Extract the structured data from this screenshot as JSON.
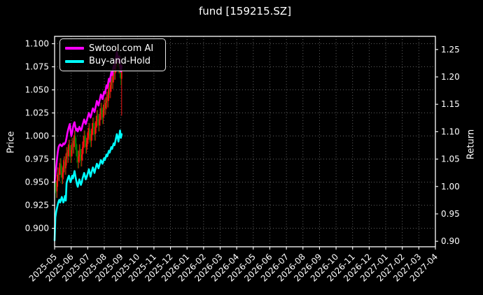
{
  "chart_data": {
    "type": "line+candlestick",
    "title": "fund [159215.SZ]",
    "x_ticks": [
      "2025-05",
      "2025-06",
      "2025-07",
      "2025-08",
      "2025-09",
      "2025-10",
      "2025-11",
      "2025-12",
      "2026-01",
      "2026-02",
      "2026-03",
      "2026-04",
      "2026-05",
      "2026-06",
      "2026-07",
      "2026-08",
      "2026-09",
      "2026-10",
      "2026-11",
      "2026-12",
      "2027-01",
      "2027-02",
      "2027-03",
      "2027-04"
    ],
    "y_left": {
      "label": "Price",
      "ticks": [
        1.1,
        1.075,
        1.05,
        1.025,
        1.0,
        0.975,
        0.95,
        0.925,
        0.9
      ],
      "lim": [
        0.88,
        1.108
      ],
      "decimals": 3
    },
    "y_right": {
      "label": "Return",
      "ticks": [
        1.25,
        1.2,
        1.15,
        1.1,
        1.05,
        1.0,
        0.95,
        0.9
      ],
      "lim": [
        0.89,
        1.274
      ],
      "decimals": 2
    },
    "grid": {
      "on": true,
      "style": "dotted",
      "color": "rgba(255,255,255,0.42)"
    },
    "colors": {
      "background": "#000000",
      "text": "#ffffff",
      "spine": "#ffffff",
      "candle_up": "#ff1111",
      "candle_down": "#008000"
    },
    "legend": {
      "position": "upper-left",
      "entries": [
        {
          "label": "Swtool.com AI",
          "color": "#ff00ff"
        },
        {
          "label": "Buy-and-Hold",
          "color": "#00ffff"
        }
      ]
    },
    "data_tick_span": 4.05,
    "data_range_shown": "2025-05 to 2025-09",
    "series": [
      {
        "name": "Swtool.com AI",
        "type": "line",
        "color": "#ff00ff",
        "axis": "left",
        "values": [
          0.95,
          0.958,
          0.966,
          0.975,
          0.983,
          0.988,
          0.99,
          0.991,
          0.99,
          0.989,
          0.99,
          0.992,
          0.991,
          0.992,
          0.994,
          0.998,
          1.003,
          1.007,
          1.01,
          1.013,
          1.006,
          1.0,
          1.004,
          1.009,
          1.013,
          1.015,
          1.01,
          1.006,
          1.008,
          1.005,
          1.007,
          1.01,
          1.008,
          1.006,
          1.008,
          1.012,
          1.015,
          1.018,
          1.015,
          1.013,
          1.016,
          1.019,
          1.022,
          1.025,
          1.022,
          1.02,
          1.023,
          1.027,
          1.03,
          1.028,
          1.026,
          1.03,
          1.034,
          1.038,
          1.036,
          1.033,
          1.037,
          1.041,
          1.045,
          1.043,
          1.04,
          1.044,
          1.048,
          1.046,
          1.05,
          1.055,
          1.052,
          1.057,
          1.062,
          1.059,
          1.064,
          1.069,
          1.066,
          1.071,
          1.076,
          1.073,
          1.079,
          1.085,
          1.091,
          1.086,
          1.08,
          1.086,
          1.078,
          1.07,
          1.076
        ]
      },
      {
        "name": "Buy-and-Hold",
        "type": "line",
        "color": "#00ffff",
        "axis": "left",
        "values": [
          0.887,
          0.912,
          0.918,
          0.922,
          0.926,
          0.929,
          0.931,
          0.928,
          0.931,
          0.934,
          0.931,
          0.928,
          0.931,
          0.935,
          0.93,
          0.949,
          0.952,
          0.955,
          0.957,
          0.953,
          0.95,
          0.953,
          0.957,
          0.954,
          0.958,
          0.962,
          0.957,
          0.952,
          0.948,
          0.945,
          0.949,
          0.953,
          0.95,
          0.947,
          0.95,
          0.954,
          0.957,
          0.96,
          0.957,
          0.953,
          0.955,
          0.958,
          0.961,
          0.964,
          0.96,
          0.956,
          0.96,
          0.963,
          0.966,
          0.963,
          0.96,
          0.964,
          0.967,
          0.97,
          0.968,
          0.965,
          0.968,
          0.971,
          0.974,
          0.972,
          0.97,
          0.973,
          0.976,
          0.974,
          0.977,
          0.98,
          0.978,
          0.981,
          0.984,
          0.982,
          0.985,
          0.988,
          0.986,
          0.989,
          0.992,
          0.99,
          0.994,
          0.998,
          1.002,
          0.999,
          0.994,
          1.0,
          1.006,
          0.998,
          1.002
        ]
      }
    ],
    "candles": {
      "axis": "left",
      "open": [
        0.958,
        0.952,
        0.945,
        0.94,
        0.952,
        0.96,
        0.958,
        0.965,
        0.97,
        0.962,
        0.955,
        0.96,
        0.968,
        0.972,
        0.965,
        0.975,
        0.982,
        0.978,
        0.985,
        0.99,
        0.984,
        0.978,
        0.985,
        0.992,
        0.988,
        0.995,
        1.0,
        0.992,
        0.985,
        0.978,
        0.972,
        0.978,
        0.985,
        0.98,
        0.974,
        0.98,
        0.988,
        0.994,
        1.0,
        0.995,
        0.988,
        0.992,
        0.998,
        1.003,
        1.008,
        1.0,
        0.995,
        1.002,
        1.008,
        1.014,
        1.008,
        1.002,
        1.01,
        1.016,
        1.022,
        1.018,
        1.012,
        1.018,
        1.024,
        1.03,
        1.025,
        1.02,
        1.028,
        1.034,
        1.03,
        1.036,
        1.042,
        1.038,
        1.045,
        1.052,
        1.048,
        1.055,
        1.062,
        1.058,
        1.065,
        1.072,
        1.068,
        1.076,
        1.084,
        1.09,
        1.082,
        1.075,
        1.082,
        1.07,
        1.062
      ],
      "close": [
        0.952,
        0.945,
        0.94,
        0.952,
        0.96,
        0.958,
        0.965,
        0.97,
        0.962,
        0.955,
        0.96,
        0.968,
        0.972,
        0.965,
        0.975,
        0.982,
        0.978,
        0.985,
        0.99,
        0.984,
        0.978,
        0.985,
        0.992,
        0.988,
        0.995,
        1.0,
        0.992,
        0.985,
        0.978,
        0.972,
        0.978,
        0.985,
        0.98,
        0.974,
        0.98,
        0.988,
        0.994,
        1.0,
        0.995,
        0.988,
        0.992,
        0.998,
        1.003,
        1.008,
        1.0,
        0.995,
        1.002,
        1.008,
        1.014,
        1.008,
        1.002,
        1.01,
        1.016,
        1.022,
        1.018,
        1.012,
        1.018,
        1.024,
        1.03,
        1.025,
        1.02,
        1.028,
        1.034,
        1.03,
        1.036,
        1.042,
        1.038,
        1.045,
        1.052,
        1.048,
        1.055,
        1.062,
        1.058,
        1.065,
        1.072,
        1.068,
        1.076,
        1.084,
        1.09,
        1.082,
        1.075,
        1.082,
        1.07,
        1.062,
        1.072
      ],
      "high": [
        0.964,
        0.958,
        0.951,
        0.958,
        0.966,
        0.966,
        0.971,
        0.976,
        0.976,
        0.968,
        0.966,
        0.974,
        0.978,
        0.978,
        0.981,
        0.988,
        0.988,
        0.991,
        0.996,
        0.996,
        0.99,
        0.991,
        0.998,
        0.998,
        1.001,
        1.006,
        1.006,
        0.998,
        0.991,
        0.984,
        0.984,
        0.991,
        0.991,
        0.986,
        0.986,
        0.994,
        1.0,
        1.006,
        1.006,
        1.001,
        0.998,
        1.004,
        1.009,
        1.014,
        1.014,
        1.006,
        1.008,
        1.014,
        1.02,
        1.02,
        1.014,
        1.016,
        1.022,
        1.028,
        1.028,
        1.024,
        1.024,
        1.03,
        1.036,
        1.036,
        1.031,
        1.034,
        1.04,
        1.04,
        1.042,
        1.048,
        1.048,
        1.051,
        1.058,
        1.058,
        1.061,
        1.068,
        1.068,
        1.071,
        1.078,
        1.078,
        1.082,
        1.09,
        1.096,
        1.096,
        1.088,
        1.088,
        1.088,
        1.076,
        1.078
      ],
      "low": [
        0.944,
        0.938,
        0.933,
        0.933,
        0.945,
        0.951,
        0.951,
        0.958,
        0.955,
        0.948,
        0.948,
        0.953,
        0.961,
        0.958,
        0.958,
        0.968,
        0.971,
        0.971,
        0.978,
        0.977,
        0.971,
        0.971,
        0.978,
        0.981,
        0.981,
        0.988,
        0.985,
        0.978,
        0.971,
        0.965,
        0.965,
        0.971,
        0.973,
        0.967,
        0.967,
        0.973,
        0.981,
        0.987,
        0.988,
        0.981,
        0.981,
        0.985,
        0.991,
        0.996,
        0.993,
        0.988,
        0.988,
        0.995,
        1.001,
        1.001,
        0.995,
        0.995,
        1.003,
        1.009,
        1.011,
        1.005,
        1.005,
        1.011,
        1.017,
        1.018,
        1.013,
        1.013,
        1.021,
        1.023,
        1.023,
        1.029,
        1.031,
        1.031,
        1.038,
        1.041,
        1.041,
        1.048,
        1.051,
        1.051,
        1.058,
        1.061,
        1.061,
        1.069,
        1.077,
        1.075,
        1.068,
        1.068,
        1.063,
        1.055,
        1.022
      ]
    }
  }
}
